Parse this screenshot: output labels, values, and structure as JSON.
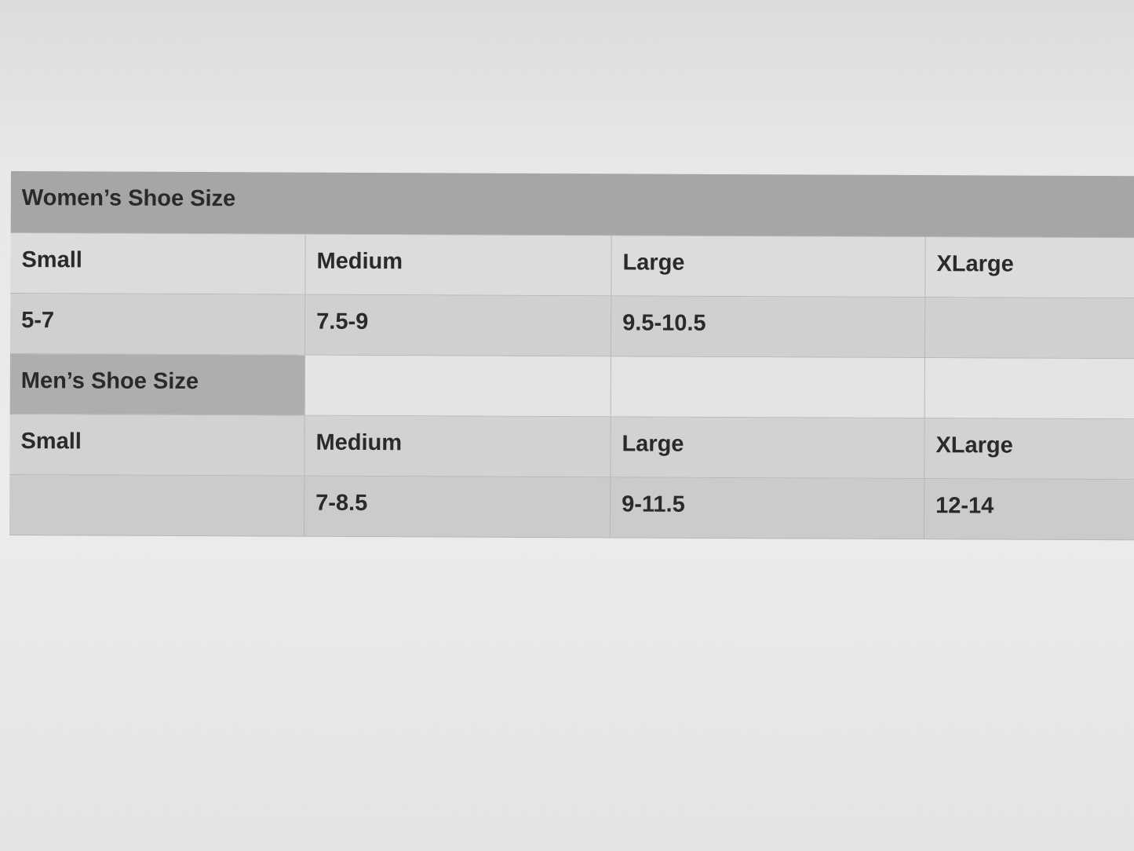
{
  "women": {
    "title": "Women’s Shoe Size",
    "headers": [
      "Small",
      "Medium",
      "Large",
      "XLarge"
    ],
    "values": [
      "5-7",
      "7.5-9",
      "9.5-10.5",
      ""
    ]
  },
  "men": {
    "title": "Men’s Shoe Size",
    "headers": [
      "Small",
      "Medium",
      "Large",
      "XLarge"
    ],
    "values": [
      "",
      "7-8.5",
      "9-11.5",
      "12-14"
    ]
  },
  "colors": {
    "header_bg": "#a6a6a6",
    "cell_bg": "#d0d0d0",
    "text": "#2a2a2a"
  }
}
